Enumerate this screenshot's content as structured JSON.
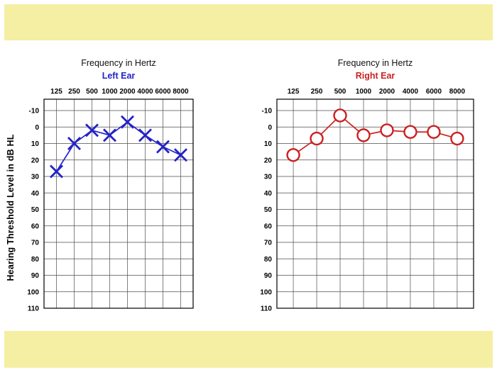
{
  "frame": {
    "background": "#ffffff"
  },
  "slide": {
    "background": "#f4efa3",
    "panel_background": "#ffffff"
  },
  "chart_data": [
    {
      "type": "line",
      "title": "Frequency in Hertz",
      "series_label": "Left Ear",
      "marker": "x",
      "color": "#2323c8",
      "categories": [
        "125",
        "250",
        "500",
        "1000",
        "2000",
        "4000",
        "6000",
        "8000"
      ],
      "values": [
        27,
        10,
        2,
        5,
        -3,
        5,
        12,
        17
      ],
      "xlabel": "Frequency in Hertz",
      "ylabel": "Hearing Threshold Level in dB HL",
      "y_ticks": [
        -10,
        0,
        10,
        20,
        30,
        40,
        50,
        60,
        70,
        80,
        90,
        100,
        110
      ],
      "ylim": [
        -10,
        110
      ],
      "y_axis_direction": "inverted (low dB at top)",
      "grid": true,
      "legend_position": "none"
    },
    {
      "type": "line",
      "title": "Frequency in Hertz",
      "series_label": "Right Ear",
      "marker": "circle",
      "color": "#cc2121",
      "categories": [
        "125",
        "250",
        "500",
        "1000",
        "2000",
        "4000",
        "6000",
        "8000"
      ],
      "values": [
        17,
        7,
        -7,
        5,
        2,
        3,
        3,
        7
      ],
      "xlabel": "Frequency in Hertz",
      "ylabel": "Hearing Threshold Level in dB HL",
      "y_ticks": [
        -10,
        0,
        10,
        20,
        30,
        40,
        50,
        60,
        70,
        80,
        90,
        100,
        110
      ],
      "ylim": [
        -10,
        110
      ],
      "y_axis_direction": "inverted (low dB at top)",
      "grid": true,
      "legend_position": "none"
    }
  ]
}
